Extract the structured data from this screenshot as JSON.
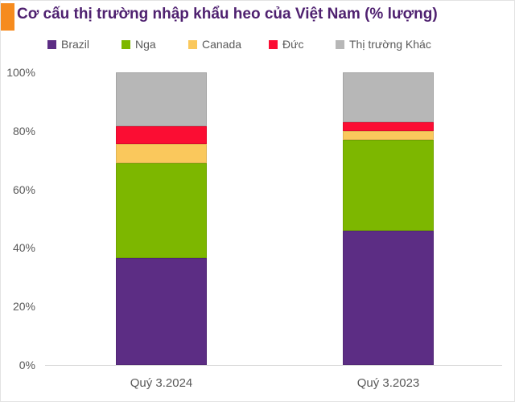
{
  "header": {
    "title": "Cơ cấu thị trường nhập khẩu heo của Việt Nam (% lượng)",
    "title_color": "#4F2170",
    "accent_color": "#F68B1E"
  },
  "chart_data": {
    "type": "bar",
    "stacked": true,
    "title": "Cơ cấu thị trường nhập khẩu heo của Việt Nam (% lượng)",
    "categories": [
      "Quý 3.2024",
      "Quý 3.2023"
    ],
    "series": [
      {
        "name": "Brazil",
        "color": "#5C2D84",
        "values": [
          36.5,
          46
        ]
      },
      {
        "name": "Nga",
        "color": "#7DB700",
        "values": [
          32.5,
          31
        ]
      },
      {
        "name": "Canada",
        "color": "#FAC85C",
        "values": [
          6.5,
          3
        ]
      },
      {
        "name": "Đức",
        "color": "#FB0D33",
        "values": [
          6,
          3
        ]
      },
      {
        "name": "Thị trường Khác",
        "color": "#B7B7B7",
        "values": [
          18.5,
          17
        ]
      }
    ],
    "xlabel": "",
    "ylabel": "",
    "ylim": [
      0,
      100
    ],
    "y_tick_values": [
      0,
      20,
      40,
      60,
      80,
      100
    ],
    "y_tick_suffix": "%",
    "grid": false,
    "legend_position": "top",
    "axis_text_color": "#595959",
    "axis_line_color": "#D9D9D9"
  }
}
